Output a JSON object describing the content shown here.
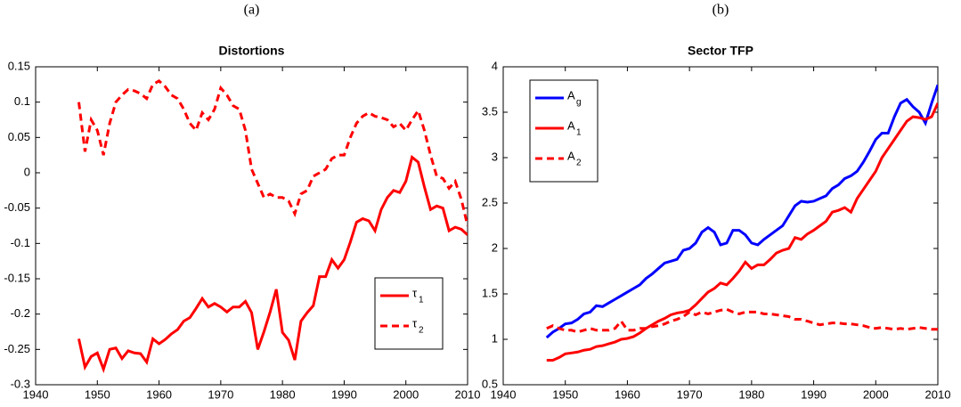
{
  "chart_data": [
    {
      "type": "line",
      "label": "(a)",
      "title": "Distortions",
      "x": [
        1947,
        1948,
        1949,
        1950,
        1951,
        1952,
        1953,
        1954,
        1955,
        1956,
        1957,
        1958,
        1959,
        1960,
        1961,
        1962,
        1963,
        1964,
        1965,
        1966,
        1967,
        1968,
        1969,
        1970,
        1971,
        1972,
        1973,
        1974,
        1975,
        1976,
        1977,
        1978,
        1979,
        1980,
        1981,
        1982,
        1983,
        1984,
        1985,
        1986,
        1987,
        1988,
        1989,
        1990,
        1991,
        1992,
        1993,
        1994,
        1995,
        1996,
        1997,
        1998,
        1999,
        2000,
        2001,
        2002,
        2003,
        2004,
        2005,
        2006,
        2007,
        2008,
        2009,
        2010
      ],
      "series": [
        {
          "name": "τ",
          "subscript": "1",
          "color": "#ff0000",
          "linestyle": "solid",
          "values": [
            -0.235,
            -0.275,
            -0.26,
            -0.255,
            -0.278,
            -0.25,
            -0.248,
            -0.263,
            -0.252,
            -0.255,
            -0.256,
            -0.268,
            -0.235,
            -0.242,
            -0.236,
            -0.228,
            -0.222,
            -0.21,
            -0.205,
            -0.192,
            -0.178,
            -0.19,
            -0.185,
            -0.19,
            -0.197,
            -0.19,
            -0.19,
            -0.182,
            -0.198,
            -0.25,
            -0.225,
            -0.197,
            -0.165,
            -0.226,
            -0.237,
            -0.265,
            -0.21,
            -0.198,
            -0.188,
            -0.147,
            -0.147,
            -0.123,
            -0.135,
            -0.123,
            -0.098,
            -0.07,
            -0.065,
            -0.068,
            -0.082,
            -0.052,
            -0.035,
            -0.025,
            -0.028,
            -0.012,
            0.022,
            0.015,
            -0.02,
            -0.052,
            -0.047,
            -0.05,
            -0.082,
            -0.077,
            -0.08,
            -0.088
          ]
        },
        {
          "name": "τ",
          "subscript": "2",
          "color": "#ff0000",
          "linestyle": "dashed",
          "values": [
            0.1,
            0.03,
            0.075,
            0.06,
            0.025,
            0.07,
            0.1,
            0.11,
            0.118,
            0.116,
            0.112,
            0.105,
            0.125,
            0.13,
            0.122,
            0.11,
            0.105,
            0.09,
            0.07,
            0.06,
            0.085,
            0.075,
            0.09,
            0.12,
            0.11,
            0.095,
            0.09,
            0.06,
            0.005,
            -0.015,
            -0.035,
            -0.03,
            -0.035,
            -0.035,
            -0.04,
            -0.058,
            -0.03,
            -0.025,
            -0.005,
            0.0,
            0.005,
            0.02,
            0.025,
            0.025,
            0.05,
            0.07,
            0.08,
            0.085,
            0.08,
            0.078,
            0.075,
            0.065,
            0.07,
            0.06,
            0.075,
            0.088,
            0.06,
            0.025,
            -0.005,
            -0.008,
            -0.022,
            -0.012,
            -0.038,
            -0.075
          ]
        }
      ],
      "xlim": [
        1940,
        2010
      ],
      "xticks": [
        1940,
        1950,
        1960,
        1970,
        1980,
        1990,
        2000,
        2010
      ],
      "ylim": [
        -0.3,
        0.15
      ],
      "yticks": [
        -0.3,
        -0.25,
        -0.2,
        -0.15,
        -0.1,
        -0.05,
        0,
        0.05,
        0.1,
        0.15
      ],
      "legend": "lower right"
    },
    {
      "type": "line",
      "label": "(b)",
      "title": "Sector TFP",
      "x": [
        1947,
        1948,
        1949,
        1950,
        1951,
        1952,
        1953,
        1954,
        1955,
        1956,
        1957,
        1958,
        1959,
        1960,
        1961,
        1962,
        1963,
        1964,
        1965,
        1966,
        1967,
        1968,
        1969,
        1970,
        1971,
        1972,
        1973,
        1974,
        1975,
        1976,
        1977,
        1978,
        1979,
        1980,
        1981,
        1982,
        1983,
        1984,
        1985,
        1986,
        1987,
        1988,
        1989,
        1990,
        1991,
        1992,
        1993,
        1994,
        1995,
        1996,
        1997,
        1998,
        1999,
        2000,
        2001,
        2002,
        2003,
        2004,
        2005,
        2006,
        2007,
        2008,
        2009,
        2010
      ],
      "series": [
        {
          "name": "A",
          "subscript": "g",
          "color": "#0000ff",
          "linestyle": "solid",
          "values": [
            1.02,
            1.08,
            1.12,
            1.17,
            1.18,
            1.22,
            1.28,
            1.3,
            1.37,
            1.36,
            1.4,
            1.44,
            1.48,
            1.52,
            1.56,
            1.6,
            1.67,
            1.72,
            1.78,
            1.84,
            1.86,
            1.88,
            1.98,
            2.0,
            2.06,
            2.18,
            2.23,
            2.18,
            2.04,
            2.06,
            2.2,
            2.2,
            2.15,
            2.06,
            2.04,
            2.1,
            2.15,
            2.2,
            2.25,
            2.36,
            2.47,
            2.52,
            2.51,
            2.52,
            2.55,
            2.58,
            2.66,
            2.7,
            2.77,
            2.8,
            2.85,
            2.95,
            3.07,
            3.2,
            3.27,
            3.27,
            3.45,
            3.6,
            3.64,
            3.56,
            3.5,
            3.38,
            3.6,
            3.8
          ]
        },
        {
          "name": "A",
          "subscript": "1",
          "color": "#ff0000",
          "linestyle": "solid",
          "values": [
            0.77,
            0.77,
            0.8,
            0.84,
            0.85,
            0.86,
            0.88,
            0.89,
            0.92,
            0.93,
            0.95,
            0.97,
            1.0,
            1.01,
            1.03,
            1.07,
            1.12,
            1.16,
            1.2,
            1.23,
            1.27,
            1.29,
            1.3,
            1.32,
            1.38,
            1.45,
            1.52,
            1.56,
            1.62,
            1.6,
            1.67,
            1.75,
            1.85,
            1.78,
            1.82,
            1.82,
            1.88,
            1.95,
            1.98,
            2.0,
            2.12,
            2.1,
            2.16,
            2.2,
            2.25,
            2.3,
            2.4,
            2.42,
            2.45,
            2.4,
            2.55,
            2.65,
            2.75,
            2.85,
            3.0,
            3.1,
            3.2,
            3.3,
            3.4,
            3.45,
            3.44,
            3.42,
            3.45,
            3.6
          ]
        },
        {
          "name": "A",
          "subscript": "2",
          "color": "#ff0000",
          "linestyle": "dashed",
          "values": [
            1.12,
            1.15,
            1.12,
            1.1,
            1.1,
            1.08,
            1.1,
            1.12,
            1.1,
            1.1,
            1.1,
            1.12,
            1.2,
            1.1,
            1.1,
            1.12,
            1.12,
            1.14,
            1.15,
            1.17,
            1.2,
            1.22,
            1.25,
            1.3,
            1.27,
            1.3,
            1.28,
            1.3,
            1.32,
            1.33,
            1.3,
            1.28,
            1.3,
            1.3,
            1.3,
            1.28,
            1.28,
            1.27,
            1.26,
            1.25,
            1.22,
            1.22,
            1.2,
            1.18,
            1.16,
            1.17,
            1.18,
            1.18,
            1.17,
            1.17,
            1.16,
            1.15,
            1.13,
            1.12,
            1.13,
            1.12,
            1.11,
            1.12,
            1.11,
            1.12,
            1.13,
            1.12,
            1.11,
            1.11
          ]
        }
      ],
      "xlim": [
        1940,
        2010
      ],
      "xticks": [
        1940,
        1950,
        1960,
        1970,
        1980,
        1990,
        2000,
        2010
      ],
      "ylim": [
        0.5,
        4
      ],
      "yticks": [
        0.5,
        1,
        1.5,
        2,
        2.5,
        3,
        3.5,
        4
      ],
      "legend": "upper left"
    }
  ]
}
